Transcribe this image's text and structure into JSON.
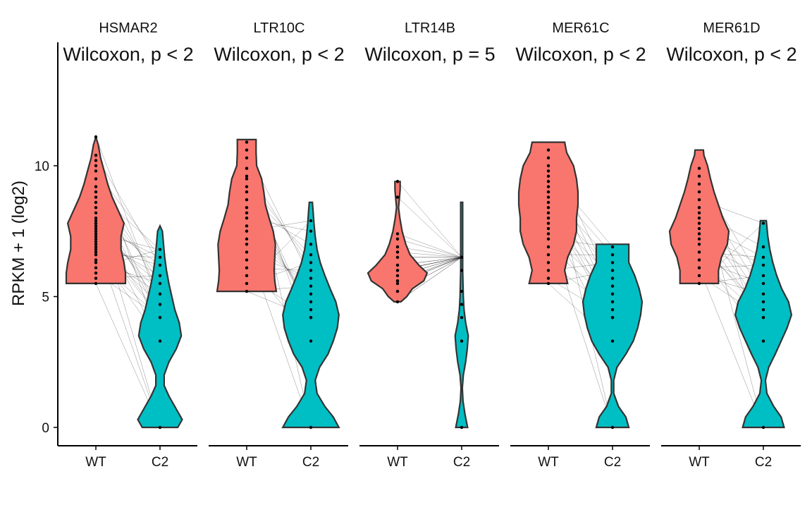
{
  "chart_data": {
    "type": "violin",
    "ylabel": "RPKM + 1 (log2)",
    "ylim": [
      -0.6,
      14.8
    ],
    "yticks": [
      0,
      5,
      10
    ],
    "categories": [
      "WT",
      "C2"
    ],
    "colors": {
      "WT": "#F8766D",
      "C2": "#00BFC4",
      "outline": "#333333",
      "pairs": "#000000",
      "points": "#000000"
    },
    "grid": false,
    "legend": "none",
    "panels": [
      {
        "name": "HSMAR2",
        "test_label": "Wilcoxon, p < 2",
        "groups": [
          {
            "category": "WT",
            "min": 5.5,
            "max": 11.1,
            "density": [
              [
                5.5,
                1.0
              ],
              [
                5.9,
                1.0
              ],
              [
                6.3,
                0.95
              ],
              [
                6.8,
                0.85
              ],
              [
                7.3,
                0.85
              ],
              [
                7.8,
                0.95
              ],
              [
                8.3,
                0.75
              ],
              [
                8.8,
                0.55
              ],
              [
                9.3,
                0.4
              ],
              [
                9.8,
                0.28
              ],
              [
                10.3,
                0.16
              ],
              [
                10.8,
                0.08
              ],
              [
                11.1,
                0.0
              ]
            ],
            "points": [
              5.5,
              5.7,
              5.9,
              6.1,
              6.3,
              6.4,
              6.6,
              6.7,
              6.8,
              6.9,
              7.0,
              7.1,
              7.2,
              7.3,
              7.4,
              7.5,
              7.6,
              7.7,
              7.8,
              7.9,
              8.0,
              8.2,
              8.4,
              8.6,
              8.8,
              9.0,
              9.2,
              9.5,
              9.8,
              10.0,
              10.2,
              10.4,
              11.1
            ]
          },
          {
            "category": "C2",
            "min": 0.0,
            "max": 7.7,
            "density": [
              [
                0.0,
                0.6
              ],
              [
                0.3,
                0.75
              ],
              [
                0.7,
                0.55
              ],
              [
                1.2,
                0.3
              ],
              [
                1.6,
                0.14
              ],
              [
                2.0,
                0.14
              ],
              [
                2.5,
                0.3
              ],
              [
                3.0,
                0.55
              ],
              [
                3.5,
                0.72
              ],
              [
                4.0,
                0.65
              ],
              [
                4.5,
                0.5
              ],
              [
                5.0,
                0.4
              ],
              [
                5.5,
                0.3
              ],
              [
                6.0,
                0.22
              ],
              [
                6.5,
                0.16
              ],
              [
                7.0,
                0.12
              ],
              [
                7.5,
                0.08
              ],
              [
                7.7,
                0.0
              ]
            ],
            "points": [
              0.0,
              3.3,
              4.2,
              4.2,
              4.7,
              5.1,
              5.5,
              5.8,
              6.2,
              6.5,
              6.8
            ]
          }
        ]
      },
      {
        "name": "LTR10C",
        "test_label": "Wilcoxon, p < 2",
        "groups": [
          {
            "category": "WT",
            "min": 5.2,
            "max": 11.0,
            "density": [
              [
                5.2,
                0.95
              ],
              [
                5.6,
                0.9
              ],
              [
                6.0,
                0.88
              ],
              [
                6.5,
                0.9
              ],
              [
                7.0,
                0.92
              ],
              [
                7.5,
                0.85
              ],
              [
                8.0,
                0.72
              ],
              [
                8.5,
                0.6
              ],
              [
                9.0,
                0.55
              ],
              [
                9.5,
                0.48
              ],
              [
                10.0,
                0.32
              ],
              [
                10.5,
                0.3
              ],
              [
                11.0,
                0.3
              ]
            ],
            "points": [
              5.2,
              5.5,
              5.8,
              6.1,
              6.4,
              6.7,
              7.0,
              7.2,
              7.5,
              7.7,
              8.0,
              8.2,
              8.4,
              8.7,
              9.0,
              9.2,
              9.5,
              9.6,
              9.9,
              10.3,
              10.6,
              10.9
            ]
          },
          {
            "category": "C2",
            "min": 0.0,
            "max": 8.6,
            "density": [
              [
                0.0,
                0.9
              ],
              [
                0.4,
                0.72
              ],
              [
                0.8,
                0.45
              ],
              [
                1.3,
                0.2
              ],
              [
                1.8,
                0.14
              ],
              [
                2.3,
                0.28
              ],
              [
                2.8,
                0.55
              ],
              [
                3.3,
                0.72
              ],
              [
                3.8,
                0.85
              ],
              [
                4.3,
                0.9
              ],
              [
                4.8,
                0.8
              ],
              [
                5.3,
                0.62
              ],
              [
                5.8,
                0.45
              ],
              [
                6.3,
                0.3
              ],
              [
                6.8,
                0.2
              ],
              [
                7.3,
                0.14
              ],
              [
                7.8,
                0.1
              ],
              [
                8.3,
                0.07
              ],
              [
                8.6,
                0.05
              ]
            ],
            "points": [
              0.0,
              3.3,
              4.2,
              4.2,
              4.5,
              4.8,
              5.1,
              5.4,
              5.7,
              6.0,
              6.3,
              6.6,
              7.0,
              7.5,
              7.9
            ]
          }
        ]
      },
      {
        "name": "LTR14B",
        "test_label": "Wilcoxon, p = 5",
        "groups": [
          {
            "category": "WT",
            "min": 4.8,
            "max": 9.4,
            "density": [
              [
                4.8,
                0.1
              ],
              [
                5.0,
                0.28
              ],
              [
                5.3,
                0.45
              ],
              [
                5.6,
                0.8
              ],
              [
                5.9,
                0.9
              ],
              [
                6.2,
                0.65
              ],
              [
                6.6,
                0.38
              ],
              [
                7.0,
                0.25
              ],
              [
                7.5,
                0.14
              ],
              [
                8.0,
                0.07
              ],
              [
                8.4,
                0.03
              ],
              [
                8.8,
                0.06
              ],
              [
                9.1,
                0.08
              ],
              [
                9.4,
                0.08
              ]
            ],
            "points": [
              4.8,
              5.2,
              5.5,
              5.6,
              5.8,
              6.0,
              6.0,
              6.2,
              6.5,
              6.7,
              6.9,
              7.2,
              7.4,
              8.8,
              9.4
            ]
          },
          {
            "category": "C2",
            "min": 0.0,
            "max": 8.6,
            "density": [
              [
                0.0,
                0.18
              ],
              [
                0.5,
                0.1
              ],
              [
                1.0,
                0.04
              ],
              [
                1.5,
                0.02
              ],
              [
                2.0,
                0.05
              ],
              [
                2.5,
                0.12
              ],
              [
                3.0,
                0.17
              ],
              [
                3.5,
                0.2
              ],
              [
                4.0,
                0.12
              ],
              [
                4.5,
                0.07
              ],
              [
                5.0,
                0.05
              ],
              [
                6.0,
                0.03
              ],
              [
                7.0,
                0.03
              ],
              [
                8.0,
                0.03
              ],
              [
                8.6,
                0.03
              ]
            ],
            "points": [
              0.0,
              3.3,
              4.2,
              4.7,
              5.2,
              6.0,
              6.5
            ]
          }
        ]
      },
      {
        "name": "MER61C",
        "test_label": "Wilcoxon, p < 2",
        "groups": [
          {
            "category": "WT",
            "min": 5.5,
            "max": 10.9,
            "density": [
              [
                5.5,
                0.65
              ],
              [
                6.0,
                0.55
              ],
              [
                6.5,
                0.65
              ],
              [
                7.0,
                0.85
              ],
              [
                7.5,
                0.95
              ],
              [
                8.0,
                0.95
              ],
              [
                8.5,
                1.0
              ],
              [
                9.0,
                1.0
              ],
              [
                9.5,
                0.95
              ],
              [
                10.0,
                0.85
              ],
              [
                10.5,
                0.62
              ],
              [
                10.9,
                0.55
              ]
            ],
            "points": [
              5.5,
              5.7,
              6.0,
              6.3,
              6.6,
              6.9,
              7.2,
              7.4,
              7.6,
              7.8,
              8.0,
              8.2,
              8.4,
              8.6,
              8.8,
              9.0,
              9.2,
              9.4,
              9.6,
              9.8,
              10.0,
              10.3,
              10.6
            ]
          },
          {
            "category": "C2",
            "min": 0.0,
            "max": 7.0,
            "density": [
              [
                0.0,
                0.55
              ],
              [
                0.4,
                0.45
              ],
              [
                0.8,
                0.2
              ],
              [
                1.3,
                0.04
              ],
              [
                1.8,
                0.04
              ],
              [
                2.3,
                0.15
              ],
              [
                2.8,
                0.45
              ],
              [
                3.3,
                0.7
              ],
              [
                3.8,
                0.85
              ],
              [
                4.3,
                0.95
              ],
              [
                4.8,
                1.0
              ],
              [
                5.3,
                0.9
              ],
              [
                5.8,
                0.75
              ],
              [
                6.3,
                0.55
              ],
              [
                7.0,
                0.55
              ]
            ],
            "points": [
              0.0,
              3.3,
              4.2,
              4.2,
              4.5,
              4.8,
              5.1,
              5.4,
              5.7,
              6.0,
              6.3,
              6.6,
              6.9
            ]
          }
        ]
      },
      {
        "name": "MER61D",
        "test_label": "Wilcoxon, p < 2",
        "groups": [
          {
            "category": "WT",
            "min": 5.5,
            "max": 10.6,
            "density": [
              [
                5.5,
                0.65
              ],
              [
                6.0,
                0.65
              ],
              [
                6.5,
                0.75
              ],
              [
                7.0,
                0.95
              ],
              [
                7.5,
                1.0
              ],
              [
                8.0,
                0.8
              ],
              [
                8.5,
                0.65
              ],
              [
                9.0,
                0.5
              ],
              [
                9.5,
                0.38
              ],
              [
                10.0,
                0.28
              ],
              [
                10.4,
                0.16
              ],
              [
                10.6,
                0.14
              ]
            ],
            "points": [
              5.5,
              5.8,
              6.1,
              6.4,
              6.7,
              7.0,
              7.2,
              7.4,
              7.6,
              7.8,
              8.0,
              8.2,
              8.4,
              8.7,
              9.0,
              9.3,
              9.6,
              9.9
            ]
          },
          {
            "category": "C2",
            "min": 0.0,
            "max": 7.9,
            "density": [
              [
                0.0,
                0.7
              ],
              [
                0.4,
                0.6
              ],
              [
                0.8,
                0.35
              ],
              [
                1.3,
                0.12
              ],
              [
                1.8,
                0.07
              ],
              [
                2.3,
                0.18
              ],
              [
                2.8,
                0.4
              ],
              [
                3.3,
                0.6
              ],
              [
                3.8,
                0.8
              ],
              [
                4.3,
                0.95
              ],
              [
                4.8,
                0.85
              ],
              [
                5.3,
                0.62
              ],
              [
                5.8,
                0.45
              ],
              [
                6.3,
                0.32
              ],
              [
                6.8,
                0.22
              ],
              [
                7.3,
                0.15
              ],
              [
                7.9,
                0.1
              ]
            ],
            "points": [
              0.0,
              3.3,
              4.2,
              4.2,
              4.5,
              4.8,
              5.1,
              5.5,
              5.8,
              6.2,
              6.5,
              6.9,
              7.8
            ]
          }
        ]
      }
    ]
  }
}
